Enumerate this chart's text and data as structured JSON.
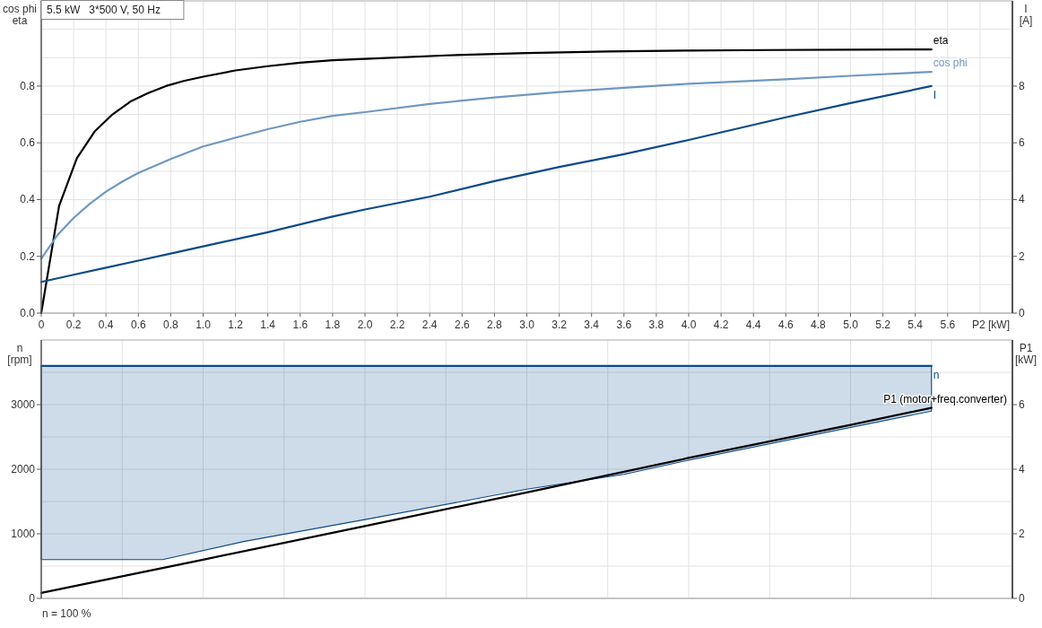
{
  "chart_data": [
    {
      "type": "line",
      "title": "5.5 kW   3*500 V, 50 Hz",
      "xlabel": "P2 [kW]",
      "ylabel": "cos phi\neta",
      "y2label": "I\n[A]",
      "xlim": [
        0,
        6
      ],
      "xticks": [
        0,
        0.2,
        0.4,
        0.6,
        0.8,
        {
          "value": 1,
          "label": "1.0"
        },
        1.2,
        1.4,
        1.6,
        1.8,
        {
          "value": 2,
          "label": "2.0"
        },
        2.2,
        2.4,
        2.6,
        2.8,
        {
          "value": 3,
          "label": "3.0"
        },
        3.2,
        3.4,
        3.6,
        3.8,
        {
          "value": 4,
          "label": "4.0"
        },
        4.2,
        4.4,
        4.6,
        4.8,
        {
          "value": 5,
          "label": "5.0"
        },
        5.2,
        5.4,
        5.6,
        {
          "value": 5.8,
          "label": null
        }
      ],
      "ylim": [
        0,
        1.1
      ],
      "yticks": [
        {
          "value": 0,
          "label": "0.0"
        },
        {
          "value": 0.1,
          "label": null
        },
        0.2,
        {
          "value": 0.3,
          "label": null
        },
        0.4,
        {
          "value": 0.5,
          "label": null
        },
        0.6,
        {
          "value": 0.7,
          "label": null
        },
        0.8,
        {
          "value": 0.9,
          "label": null
        },
        {
          "value": 1,
          "label": null
        }
      ],
      "y2lim": [
        0,
        11
      ],
      "y2ticks": [
        0,
        2,
        4,
        6,
        8
      ],
      "grid": true,
      "series": [
        {
          "name": "eta",
          "color": "#000000",
          "x": [
            0,
            0.11,
            0.22,
            0.33,
            0.44,
            0.55,
            0.66,
            0.77,
            0.88,
            1,
            1.2,
            1.4,
            1.6,
            1.8,
            2,
            2.5,
            3,
            3.5,
            4,
            4.5,
            5,
            5.5
          ],
          "values": [
            0,
            0.377,
            0.546,
            0.64,
            0.7,
            0.745,
            0.775,
            0.8,
            0.818,
            0.833,
            0.855,
            0.87,
            0.882,
            0.891,
            0.896,
            0.908,
            0.916,
            0.922,
            0.925,
            0.927,
            0.928,
            0.929
          ]
        },
        {
          "name": "cos phi",
          "color": "#6f98c1",
          "x": [
            0,
            0.1,
            0.2,
            0.3,
            0.4,
            0.5,
            0.6,
            0.8,
            1,
            1.2,
            1.4,
            1.6,
            1.8,
            2,
            2.4,
            2.8,
            3.2,
            3.6,
            4,
            4.6,
            5,
            5.5
          ],
          "values": [
            0.192,
            0.275,
            0.335,
            0.385,
            0.428,
            0.463,
            0.494,
            0.543,
            0.587,
            0.618,
            0.648,
            0.674,
            0.695,
            0.708,
            0.737,
            0.76,
            0.779,
            0.794,
            0.808,
            0.824,
            0.836,
            0.85
          ]
        },
        {
          "name": "I",
          "color": "#0b4a8b",
          "axis": "y2",
          "x": [
            0,
            0.2,
            0.4,
            0.6,
            0.8,
            1,
            1.4,
            1.8,
            2,
            2.4,
            2.8,
            3.2,
            3.6,
            4,
            4.6,
            5,
            5.5
          ],
          "values": [
            1.1,
            1.35,
            1.6,
            1.85,
            2.1,
            2.35,
            2.85,
            3.4,
            3.65,
            4.1,
            4.65,
            5.15,
            5.6,
            6.1,
            6.9,
            7.4,
            8.0
          ]
        }
      ]
    },
    {
      "type": "line",
      "ylabel": "n\n[rpm]",
      "y2label": "P1\n[kW]",
      "xlim": [
        0,
        6
      ],
      "xticks": [
        0,
        0.5,
        1,
        1.5,
        2,
        2.5,
        3,
        3.5,
        4,
        4.5,
        5,
        5.5
      ],
      "tick_labels": "y",
      "ylim": [
        0,
        4000
      ],
      "yticks": [
        0,
        {
          "value": 500,
          "label": null
        },
        1000,
        {
          "value": 1500,
          "label": null
        },
        2000,
        {
          "value": 2500,
          "label": null
        },
        3000,
        {
          "value": 3500,
          "label": null
        }
      ],
      "y2lim": [
        0,
        8
      ],
      "y2ticks": [
        0,
        2,
        4,
        6
      ],
      "grid": true,
      "annotations": [
        "n = 100 %"
      ],
      "series": [
        {
          "name": "n",
          "color": "#0b4a8b",
          "x": [
            0,
            0.75,
            1.25,
            2,
            3,
            3.6,
            4,
            5.5
          ],
          "values": [
            3600,
            3600,
            3600,
            3600,
            3600,
            3600,
            3600,
            3600
          ],
          "lower": [
            600,
            600,
            880,
            1220,
            1690,
            1920,
            2140,
            2900
          ],
          "upper": [
            3600,
            3600,
            3600,
            3600,
            3600,
            3600,
            3600,
            3600
          ]
        },
        {
          "name": "P1 (motor+freq.converter)",
          "color": "#000000",
          "axis": "y2",
          "x": [
            0,
            1,
            2,
            3,
            4,
            5,
            5.5
          ],
          "values": [
            0.17,
            1.2,
            2.24,
            3.28,
            4.35,
            5.37,
            5.9
          ]
        }
      ]
    }
  ]
}
